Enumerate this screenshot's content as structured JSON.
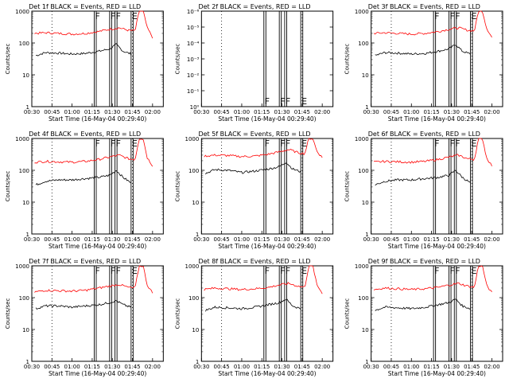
{
  "colors": {
    "events": "#000000",
    "lld": "#ff0000",
    "axis": "#000000",
    "background": "#ffffff"
  },
  "chart_data": [
    {
      "type": "line",
      "title": "Det 1f BLACK = Events, RED = LLD",
      "xlabel": "Start Time (16-May-04 00:29:40)",
      "ylabel": "Counts/sec",
      "yscale": "log",
      "ylim": [
        1,
        1000
      ],
      "yticks": [
        "1",
        "10",
        "100",
        "1000"
      ],
      "xticks": [
        "00:30",
        "00:45",
        "01:00",
        "01:15",
        "01:30",
        "01:45",
        "02:00"
      ],
      "dotted_lines": [
        "00:45",
        "01:45"
      ],
      "flag_lines": [
        {
          "time": "01:16.5",
          "label": "F"
        },
        {
          "time": "01:18"
        },
        {
          "time": "01:28",
          "label": "F"
        },
        {
          "time": "01:29.5"
        },
        {
          "time": "01:32",
          "label": "F"
        },
        {
          "time": "01:33.5"
        },
        {
          "time": "01:44",
          "label": "E"
        },
        {
          "time": "01:45.5"
        }
      ],
      "series": [
        {
          "name": "Events",
          "color": "#000000",
          "x": [
            "00:33",
            "00:40",
            "00:50",
            "01:00",
            "01:10",
            "01:20",
            "01:28",
            "01:33",
            "01:38",
            "01:44"
          ],
          "values": [
            40,
            50,
            48,
            45,
            47,
            55,
            65,
            90,
            55,
            45
          ]
        },
        {
          "name": "LLD",
          "color": "#ff0000",
          "x": [
            "00:32",
            "00:40",
            "00:50",
            "01:00",
            "01:10",
            "01:20",
            "01:28",
            "01:35",
            "01:42",
            "01:47",
            "01:50",
            "01:53",
            "01:56",
            "02:00"
          ],
          "values": [
            200,
            210,
            200,
            190,
            200,
            230,
            270,
            300,
            250,
            240,
            1000,
            1000,
            300,
            150
          ]
        }
      ]
    },
    {
      "type": "line",
      "title": "Det 2f BLACK = Events, RED = LLD",
      "xlabel": "Start Time (16-May-04 00:29:40)",
      "ylabel": "Counts/sec",
      "yscale": "log",
      "ylim": [
        1,
        1e-06
      ],
      "yticks": [
        "10⁰",
        "10⁻¹",
        "10⁻²",
        "10⁻³",
        "10⁻⁴",
        "10⁻⁵",
        "10⁻⁶"
      ],
      "xticks": [
        "00:30",
        "00:45",
        "01:00",
        "01:15",
        "01:30",
        "01:45",
        "02:00"
      ],
      "dotted_lines": [
        "00:45",
        "01:45"
      ],
      "flag_lines": [
        {
          "time": "01:16.5",
          "label": "F"
        },
        {
          "time": "01:18"
        },
        {
          "time": "01:28",
          "label": "F"
        },
        {
          "time": "01:29.5"
        },
        {
          "time": "01:32",
          "label": "F"
        },
        {
          "time": "01:33.5"
        },
        {
          "time": "01:44",
          "label": "E"
        },
        {
          "time": "01:45.5"
        }
      ],
      "series": []
    },
    {
      "type": "line",
      "title": "Det 3f BLACK = Events, RED = LLD",
      "xlabel": "Start Time (16-May-04 00:29:40)",
      "ylabel": "Counts/sec",
      "yscale": "log",
      "ylim": [
        1,
        1000
      ],
      "yticks": [
        "1",
        "10",
        "100",
        "1000"
      ],
      "xticks": [
        "00:30",
        "00:45",
        "01:00",
        "01:15",
        "01:30",
        "01:45",
        "02:00"
      ],
      "dotted_lines": [
        "00:45",
        "01:45"
      ],
      "flag_lines": [
        {
          "time": "01:16.5",
          "label": "F"
        },
        {
          "time": "01:18"
        },
        {
          "time": "01:28",
          "label": "F"
        },
        {
          "time": "01:29.5"
        },
        {
          "time": "01:32",
          "label": "F"
        },
        {
          "time": "01:33.5"
        },
        {
          "time": "01:44",
          "label": "E"
        },
        {
          "time": "01:45.5"
        }
      ],
      "series": [
        {
          "name": "Events",
          "color": "#000000",
          "x": [
            "00:33",
            "00:40",
            "00:50",
            "01:00",
            "01:10",
            "01:20",
            "01:28",
            "01:33",
            "01:38",
            "01:44"
          ],
          "values": [
            40,
            50,
            48,
            45,
            47,
            55,
            65,
            90,
            55,
            45
          ]
        },
        {
          "name": "LLD",
          "color": "#ff0000",
          "x": [
            "00:32",
            "00:40",
            "00:50",
            "01:00",
            "01:10",
            "01:20",
            "01:28",
            "01:35",
            "01:42",
            "01:47",
            "01:50",
            "01:53",
            "01:56",
            "02:00"
          ],
          "values": [
            200,
            210,
            200,
            190,
            200,
            230,
            270,
            300,
            250,
            240,
            1000,
            1000,
            300,
            150
          ]
        }
      ]
    },
    {
      "type": "line",
      "title": "Det 4f BLACK = Events, RED = LLD",
      "xlabel": "Start Time (16-May-04 00:29:40)",
      "ylabel": "Counts/sec",
      "yscale": "log",
      "ylim": [
        1,
        1000
      ],
      "yticks": [
        "1",
        "10",
        "100",
        "1000"
      ],
      "xticks": [
        "00:30",
        "00:45",
        "01:00",
        "01:15",
        "01:30",
        "01:45",
        "02:00"
      ],
      "dotted_lines": [
        "00:45",
        "01:45"
      ],
      "flag_lines": [
        {
          "time": "01:16.5",
          "label": "F"
        },
        {
          "time": "01:18"
        },
        {
          "time": "01:28",
          "label": "F"
        },
        {
          "time": "01:29.5"
        },
        {
          "time": "01:32",
          "label": "F"
        },
        {
          "time": "01:33.5"
        },
        {
          "time": "01:44",
          "label": "E"
        },
        {
          "time": "01:45.5"
        }
      ],
      "series": [
        {
          "name": "Events",
          "color": "#000000",
          "x": [
            "00:33",
            "00:40",
            "00:50",
            "01:00",
            "01:10",
            "01:20",
            "01:28",
            "01:33",
            "01:38",
            "01:44"
          ],
          "values": [
            35,
            45,
            50,
            50,
            55,
            60,
            70,
            100,
            60,
            40
          ]
        },
        {
          "name": "LLD",
          "color": "#ff0000",
          "x": [
            "00:32",
            "00:40",
            "00:50",
            "01:00",
            "01:10",
            "01:20",
            "01:28",
            "01:35",
            "01:42",
            "01:47",
            "01:50",
            "01:53",
            "01:56",
            "02:00"
          ],
          "values": [
            180,
            190,
            185,
            180,
            190,
            220,
            260,
            300,
            230,
            220,
            1000,
            1000,
            250,
            140
          ]
        }
      ]
    },
    {
      "type": "line",
      "title": "Det 5f BLACK = Events, RED = LLD",
      "xlabel": "Start Time (16-May-04 00:29:40)",
      "ylabel": "Counts/sec",
      "yscale": "log",
      "ylim": [
        1,
        1000
      ],
      "yticks": [
        "1",
        "10",
        "100",
        "1000"
      ],
      "xticks": [
        "00:30",
        "00:45",
        "01:00",
        "01:15",
        "01:30",
        "01:45",
        "02:00"
      ],
      "dotted_lines": [
        "00:45",
        "01:45"
      ],
      "flag_lines": [
        {
          "time": "01:16.5",
          "label": "F"
        },
        {
          "time": "01:18"
        },
        {
          "time": "01:28",
          "label": "F"
        },
        {
          "time": "01:29.5"
        },
        {
          "time": "01:32",
          "label": "F"
        },
        {
          "time": "01:33.5"
        },
        {
          "time": "01:44",
          "label": "E"
        },
        {
          "time": "01:45.5"
        }
      ],
      "series": [
        {
          "name": "Events",
          "color": "#000000",
          "x": [
            "00:33",
            "00:40",
            "00:50",
            "01:00",
            "01:10",
            "01:20",
            "01:28",
            "01:33",
            "01:38",
            "01:44"
          ],
          "values": [
            80,
            105,
            100,
            85,
            95,
            110,
            130,
            180,
            110,
            90
          ]
        },
        {
          "name": "LLD",
          "color": "#ff0000",
          "x": [
            "00:32",
            "00:40",
            "00:50",
            "01:00",
            "01:10",
            "01:20",
            "01:28",
            "01:35",
            "01:42",
            "01:47",
            "01:50",
            "01:53",
            "01:56",
            "02:00"
          ],
          "values": [
            280,
            300,
            290,
            270,
            280,
            320,
            380,
            450,
            360,
            330,
            1000,
            1000,
            400,
            250
          ]
        }
      ]
    },
    {
      "type": "line",
      "title": "Det 6f BLACK = Events, RED = LLD",
      "xlabel": "Start Time (16-May-04 00:29:40)",
      "ylabel": "Counts/sec",
      "yscale": "log",
      "ylim": [
        1,
        1000
      ],
      "yticks": [
        "1",
        "10",
        "100",
        "1000"
      ],
      "xticks": [
        "00:30",
        "00:45",
        "01:00",
        "01:15",
        "01:30",
        "01:45",
        "02:00"
      ],
      "dotted_lines": [
        "00:45",
        "01:45"
      ],
      "flag_lines": [
        {
          "time": "01:16.5",
          "label": "F"
        },
        {
          "time": "01:18"
        },
        {
          "time": "01:28",
          "label": "F"
        },
        {
          "time": "01:29.5"
        },
        {
          "time": "01:32",
          "label": "F"
        },
        {
          "time": "01:33.5"
        },
        {
          "time": "01:44",
          "label": "E"
        },
        {
          "time": "01:45.5"
        }
      ],
      "series": [
        {
          "name": "Events",
          "color": "#000000",
          "x": [
            "00:33",
            "00:40",
            "00:50",
            "01:00",
            "01:10",
            "01:20",
            "01:28",
            "01:33",
            "01:38",
            "01:44"
          ],
          "values": [
            35,
            45,
            50,
            50,
            55,
            60,
            70,
            100,
            60,
            40
          ]
        },
        {
          "name": "LLD",
          "color": "#ff0000",
          "x": [
            "00:32",
            "00:40",
            "00:50",
            "01:00",
            "01:10",
            "01:20",
            "01:28",
            "01:35",
            "01:42",
            "01:47",
            "01:50",
            "01:53",
            "01:56",
            "02:00"
          ],
          "values": [
            180,
            190,
            185,
            180,
            190,
            220,
            260,
            300,
            230,
            220,
            1000,
            1000,
            250,
            140
          ]
        }
      ]
    },
    {
      "type": "line",
      "title": "Det 7f BLACK = Events, RED = LLD",
      "xlabel": "Start Time (16-May-04 00:29:40)",
      "ylabel": "Counts/sec",
      "yscale": "log",
      "ylim": [
        1,
        1000
      ],
      "yticks": [
        "1",
        "10",
        "100",
        "1000"
      ],
      "xticks": [
        "00:30",
        "00:45",
        "01:00",
        "01:15",
        "01:30",
        "01:45",
        "02:00"
      ],
      "dotted_lines": [
        "00:45",
        "01:45"
      ],
      "flag_lines": [
        {
          "time": "01:16.5",
          "label": "F"
        },
        {
          "time": "01:18"
        },
        {
          "time": "01:28",
          "label": "F"
        },
        {
          "time": "01:29.5"
        },
        {
          "time": "01:32",
          "label": "F"
        },
        {
          "time": "01:33.5"
        },
        {
          "time": "01:44",
          "label": "E"
        },
        {
          "time": "01:45.5"
        }
      ],
      "series": [
        {
          "name": "Events",
          "color": "#000000",
          "x": [
            "00:33",
            "00:40",
            "00:50",
            "01:00",
            "01:10",
            "01:20",
            "01:28",
            "01:33",
            "01:38",
            "01:44"
          ],
          "values": [
            45,
            55,
            55,
            50,
            55,
            60,
            70,
            80,
            60,
            50
          ]
        },
        {
          "name": "LLD",
          "color": "#ff0000",
          "x": [
            "00:32",
            "00:40",
            "00:50",
            "01:00",
            "01:10",
            "01:20",
            "01:28",
            "01:35",
            "01:42",
            "01:47",
            "01:50",
            "01:53",
            "01:56",
            "02:00"
          ],
          "values": [
            150,
            170,
            165,
            160,
            170,
            200,
            230,
            260,
            210,
            200,
            1000,
            1000,
            250,
            140
          ]
        }
      ]
    },
    {
      "type": "line",
      "title": "Det 8f BLACK = Events, RED = LLD",
      "xlabel": "Start Time (16-May-04 00:29:40)",
      "ylabel": "Counts/sec",
      "yscale": "log",
      "ylim": [
        1,
        1000
      ],
      "yticks": [
        "1",
        "10",
        "100",
        "1000"
      ],
      "xticks": [
        "00:30",
        "00:45",
        "01:00",
        "01:15",
        "01:30",
        "01:45",
        "02:00"
      ],
      "dotted_lines": [
        "00:45",
        "01:45"
      ],
      "flag_lines": [
        {
          "time": "01:16.5",
          "label": "F"
        },
        {
          "time": "01:18"
        },
        {
          "time": "01:28",
          "label": "F"
        },
        {
          "time": "01:29.5"
        },
        {
          "time": "01:32",
          "label": "F"
        },
        {
          "time": "01:33.5"
        },
        {
          "time": "01:44",
          "label": "E"
        },
        {
          "time": "01:45.5"
        }
      ],
      "series": [
        {
          "name": "Events",
          "color": "#000000",
          "x": [
            "00:33",
            "00:40",
            "00:50",
            "01:00",
            "01:10",
            "01:20",
            "01:28",
            "01:33",
            "01:38",
            "01:44"
          ],
          "values": [
            40,
            50,
            48,
            45,
            50,
            60,
            70,
            90,
            55,
            45
          ]
        },
        {
          "name": "LLD",
          "color": "#ff0000",
          "x": [
            "00:32",
            "00:40",
            "00:50",
            "01:00",
            "01:10",
            "01:20",
            "01:28",
            "01:35",
            "01:42",
            "01:47",
            "01:50",
            "01:53",
            "01:56",
            "02:00"
          ],
          "values": [
            180,
            200,
            190,
            180,
            190,
            210,
            250,
            280,
            230,
            210,
            1000,
            1000,
            250,
            140
          ]
        }
      ]
    },
    {
      "type": "line",
      "title": "Det 9f BLACK = Events, RED = LLD",
      "xlabel": "Start Time (16-May-04 00:29:40)",
      "ylabel": "Counts/sec",
      "yscale": "log",
      "ylim": [
        1,
        1000
      ],
      "yticks": [
        "1",
        "10",
        "100",
        "1000"
      ],
      "xticks": [
        "00:30",
        "00:45",
        "01:00",
        "01:15",
        "01:30",
        "01:45",
        "02:00"
      ],
      "dotted_lines": [
        "00:45",
        "01:45"
      ],
      "flag_lines": [
        {
          "time": "01:16.5",
          "label": "F"
        },
        {
          "time": "01:18"
        },
        {
          "time": "01:28",
          "label": "F"
        },
        {
          "time": "01:29.5"
        },
        {
          "time": "01:32",
          "label": "F"
        },
        {
          "time": "01:33.5"
        },
        {
          "time": "01:44",
          "label": "E"
        },
        {
          "time": "01:45.5"
        }
      ],
      "series": [
        {
          "name": "Events",
          "color": "#000000",
          "x": [
            "00:33",
            "00:40",
            "00:50",
            "01:00",
            "01:10",
            "01:20",
            "01:28",
            "01:33",
            "01:38",
            "01:44"
          ],
          "values": [
            40,
            50,
            48,
            45,
            50,
            60,
            70,
            90,
            55,
            45
          ]
        },
        {
          "name": "LLD",
          "color": "#ff0000",
          "x": [
            "00:32",
            "00:40",
            "00:50",
            "01:00",
            "01:10",
            "01:20",
            "01:28",
            "01:35",
            "01:42",
            "01:47",
            "01:50",
            "01:53",
            "01:56",
            "02:00"
          ],
          "values": [
            180,
            200,
            190,
            180,
            190,
            210,
            250,
            280,
            230,
            210,
            1000,
            1000,
            250,
            140
          ]
        }
      ]
    }
  ]
}
